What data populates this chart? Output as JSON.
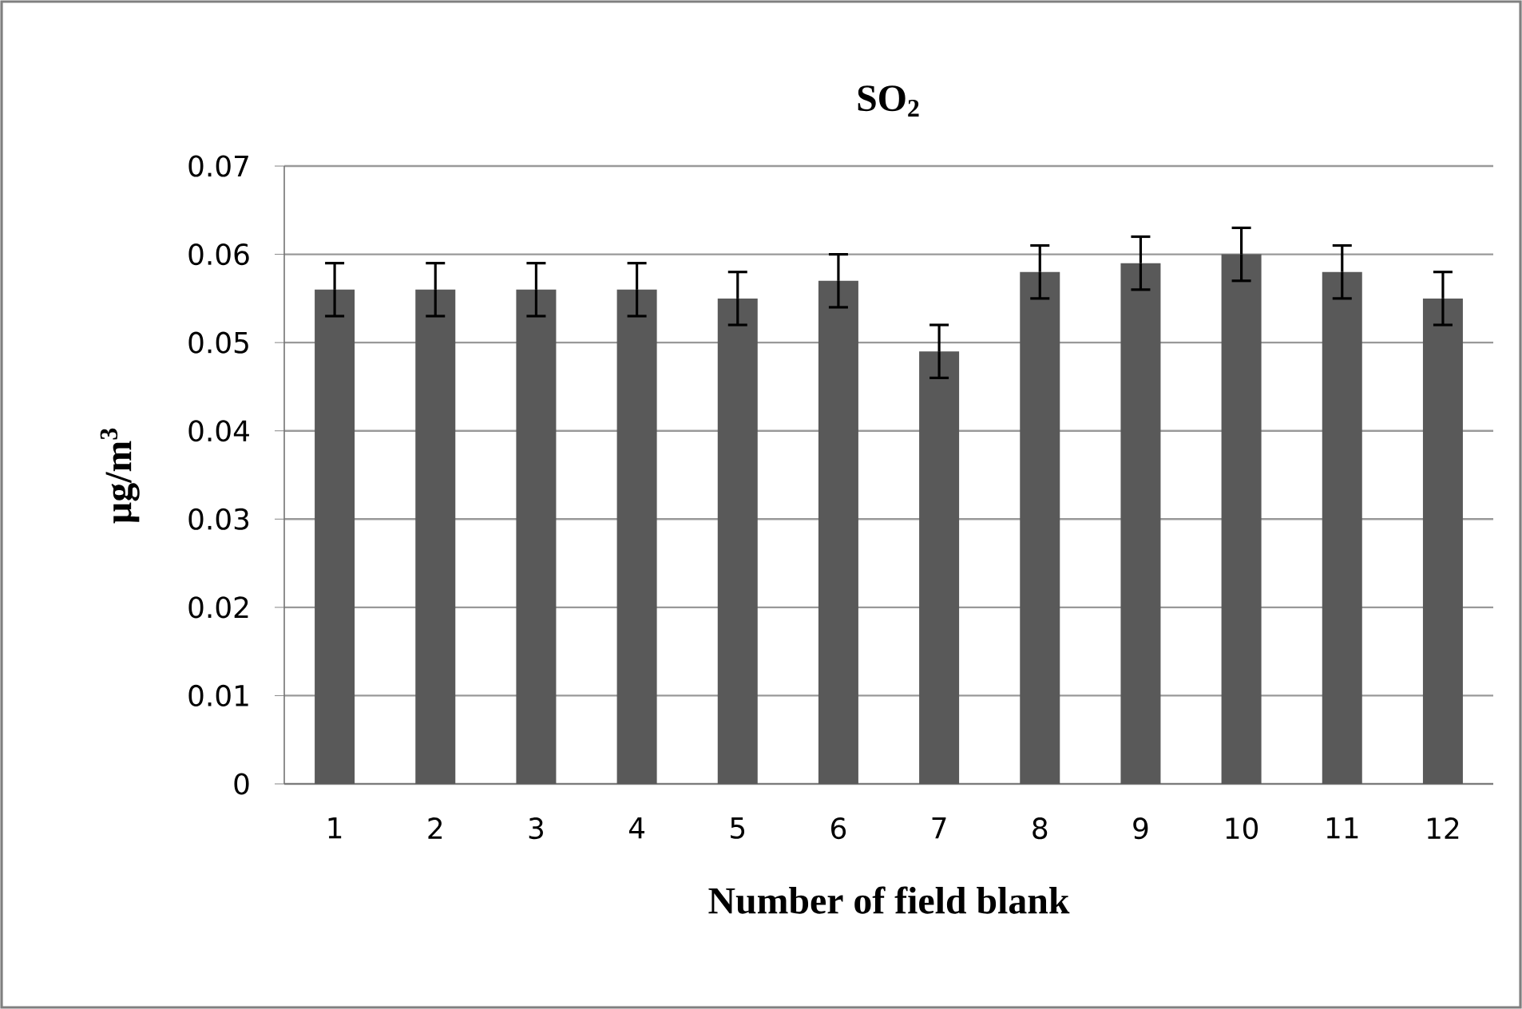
{
  "chart_data": {
    "type": "bar",
    "title": "SO$_{2}$",
    "xlabel": "Number of field blank",
    "ylabel": "µg/m$^{3}$",
    "categories": [
      "1",
      "2",
      "3",
      "4",
      "5",
      "6",
      "7",
      "8",
      "9",
      "10",
      "11",
      "12"
    ],
    "values": [
      0.056,
      0.056,
      0.056,
      0.056,
      0.055,
      0.057,
      0.049,
      0.058,
      0.059,
      0.06,
      0.058,
      0.055
    ],
    "errors": [
      0.003,
      0.003,
      0.003,
      0.003,
      0.003,
      0.003,
      0.003,
      0.003,
      0.003,
      0.003,
      0.003,
      0.003
    ],
    "color": "#595959",
    "ylim": [
      0,
      0.07
    ],
    "yticks": [
      0,
      0.01,
      0.02,
      0.03,
      0.04,
      0.05,
      0.06,
      0.07
    ],
    "grid": "y"
  }
}
